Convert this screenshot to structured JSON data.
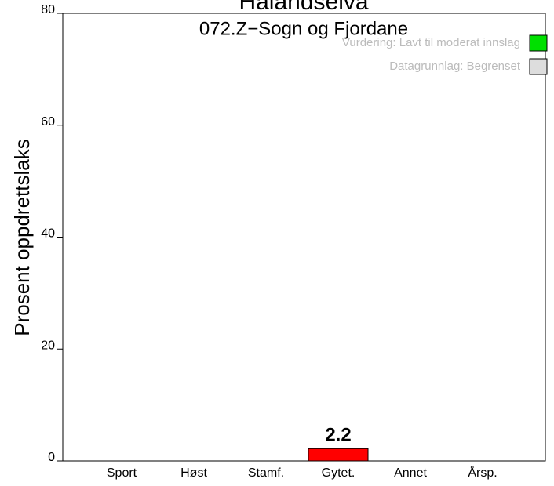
{
  "chart_data": {
    "type": "bar",
    "title": "Hålandselva",
    "subtitle": "072.Z−Sogn og Fjordane",
    "ylabel": "Prosent oppdrettslaks",
    "categories": [
      "Sport",
      "Høst",
      "Stamf.",
      "Gytet.",
      "Annet",
      "Årsp."
    ],
    "values": [
      null,
      null,
      null,
      2.2,
      null,
      null
    ],
    "color": "#ff0000",
    "ylim": [
      0,
      80
    ],
    "yticks": [
      0,
      20,
      40,
      60,
      80
    ],
    "legend": [
      {
        "name": "Vurdering: Lavt til moderat innslag",
        "color": "#00e000"
      },
      {
        "name": "Datagrunnlag: Begrenset",
        "color": "#dddddd"
      }
    ],
    "legend_position": "top-right"
  }
}
